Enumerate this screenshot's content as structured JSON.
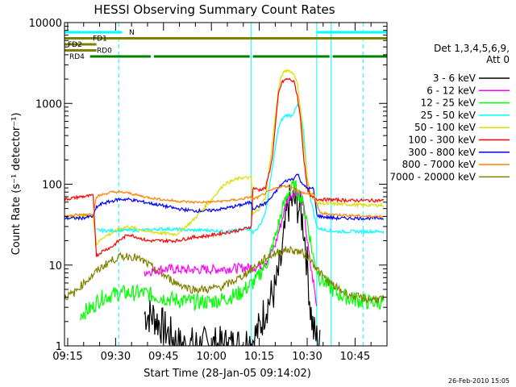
{
  "chart_data": {
    "type": "line",
    "title": "HESSI Observing Summary Count Rates",
    "xlabel": "Start Time (28-Jan-05 09:14:02)",
    "ylabel": "Count Rate (s⁻¹ detector⁻¹)",
    "yscale": "log",
    "ylim": [
      1,
      10000
    ],
    "xlim_minutes": [
      0,
      101
    ],
    "x_ticks": [
      {
        "label": "09:15",
        "minute": 1
      },
      {
        "label": "09:30",
        "minute": 16
      },
      {
        "label": "09:45",
        "minute": 31
      },
      {
        "label": "10:00",
        "minute": 46
      },
      {
        "label": "10:15",
        "minute": 61
      },
      {
        "label": "10:30",
        "minute": 76
      },
      {
        "label": "10:45",
        "minute": 91
      }
    ],
    "y_ticks": [
      {
        "label": "1",
        "value": 1
      },
      {
        "label": "10",
        "value": 10
      },
      {
        "label": "100",
        "value": 100
      },
      {
        "label": "1000",
        "value": 1000
      },
      {
        "label": "10000",
        "value": 10000
      }
    ],
    "legend_title_1": "Det 1,3,4,5,6,9,",
    "legend_title_2": "Att 0",
    "legend_placement": "right",
    "series": [
      {
        "name": "3 - 6 keV",
        "color": "#000000",
        "x": [
          25,
          28,
          32,
          36,
          40,
          45,
          50,
          55,
          59,
          61,
          63,
          66,
          68,
          69.5,
          70,
          71,
          72,
          73,
          74,
          75,
          76,
          77,
          78,
          80
        ],
        "y": [
          2.5,
          2.3,
          1.5,
          1,
          1,
          1,
          1,
          1,
          1.2,
          1.6,
          3,
          5,
          12,
          40,
          55,
          60,
          62,
          55,
          45,
          28,
          10,
          3,
          1.5,
          1
        ]
      },
      {
        "name": "6 - 12 keV",
        "color": "#ff00ff",
        "x": [
          25,
          32,
          38,
          45,
          55,
          60,
          62,
          64,
          66,
          68,
          70,
          72,
          74,
          75,
          76,
          77,
          78,
          79
        ],
        "y": [
          8.2,
          9,
          8.7,
          8.8,
          9.2,
          9.5,
          10,
          12,
          18,
          35,
          70,
          82,
          75,
          50,
          20,
          10,
          6,
          3
        ]
      },
      {
        "name": "12 - 25 keV",
        "color": "#00ff00",
        "x": [
          5,
          9,
          10,
          12,
          17,
          25,
          30,
          35,
          40,
          45,
          50,
          55,
          60,
          64,
          66,
          68,
          70,
          72,
          74,
          76,
          78,
          80,
          85,
          90,
          95,
          100
        ],
        "y": [
          2.5,
          3,
          3.5,
          4,
          4.5,
          4.5,
          4,
          3.7,
          3.5,
          3.5,
          3.8,
          4.5,
          6.5,
          12,
          22,
          45,
          80,
          95,
          70,
          35,
          12,
          7,
          4.5,
          3.8,
          3.5,
          3.5
        ]
      },
      {
        "name": "25 - 50 keV",
        "color": "#00ffff",
        "x": [
          10,
          15,
          17,
          25,
          30,
          32,
          40,
          45,
          50,
          55,
          58.5,
          59,
          61,
          63,
          65,
          67,
          68,
          69,
          70,
          71,
          72,
          73,
          74,
          75,
          76,
          77,
          78,
          79,
          80,
          85,
          90,
          95,
          100
        ],
        "y": [
          27,
          26.5,
          27,
          27,
          28,
          28,
          27,
          27,
          26,
          27,
          28.5,
          25,
          30,
          45,
          150,
          500,
          620,
          700,
          720,
          700,
          800,
          950,
          800,
          400,
          120,
          70,
          45,
          30,
          28,
          26,
          26,
          26,
          26
        ]
      },
      {
        "name": "50 - 100 keV",
        "color": "#dddd00",
        "x": [
          0,
          5,
          9,
          10,
          12,
          15,
          17,
          20,
          23,
          26,
          30,
          35,
          40,
          45,
          50,
          55,
          58.5,
          59,
          61,
          63,
          65,
          67,
          68,
          69,
          70,
          71,
          72,
          73,
          74,
          75,
          76,
          77,
          78,
          79,
          80,
          85,
          90,
          95,
          100
        ],
        "y": [
          40,
          40,
          41,
          18,
          22,
          25,
          28,
          30,
          28,
          26,
          25,
          24,
          35,
          58,
          100,
          120,
          120,
          42,
          50,
          70,
          300,
          1500,
          2200,
          2500,
          2600,
          2450,
          2300,
          1700,
          800,
          300,
          120,
          80,
          65,
          60,
          58,
          57,
          56,
          55,
          55
        ]
      },
      {
        "name": "100 - 300 keV",
        "color": "#ff0000",
        "x": [
          0,
          5,
          9,
          10,
          12,
          15,
          17,
          20,
          23,
          26,
          30,
          35,
          40,
          45,
          50,
          55,
          58.5,
          59,
          61,
          63,
          65,
          67,
          68,
          69,
          70,
          71,
          72,
          73,
          74,
          75,
          76,
          77,
          78,
          79,
          80,
          85,
          90,
          95,
          100
        ],
        "y": [
          65,
          70,
          72,
          13,
          15,
          17,
          20,
          24,
          22,
          20,
          20,
          20,
          22,
          23,
          25,
          27,
          30,
          90,
          85,
          90,
          200,
          1300,
          1800,
          1950,
          2000,
          1950,
          1800,
          1200,
          600,
          200,
          90,
          70,
          68,
          66,
          65,
          64,
          63,
          63,
          63
        ]
      },
      {
        "name": "300 - 800 keV",
        "color": "#0000ff",
        "x": [
          0,
          5,
          9,
          10,
          12,
          15,
          17,
          20,
          25,
          30,
          35,
          40,
          45,
          50,
          55,
          58.5,
          59,
          61,
          63,
          65,
          67,
          69,
          70,
          71,
          72,
          73,
          74,
          75,
          76,
          77,
          78,
          79,
          80,
          85,
          90,
          95,
          100
        ],
        "y": [
          38,
          38,
          40,
          52,
          58,
          62,
          65,
          65,
          60,
          55,
          50,
          47,
          47,
          50,
          55,
          60,
          50,
          54,
          58,
          70,
          90,
          108,
          112,
          115,
          120,
          135,
          110,
          95,
          90,
          88,
          88,
          42,
          40,
          38,
          38,
          38,
          38
        ]
      },
      {
        "name": "800 - 7000 keV",
        "color": "#ff8000",
        "x": [
          0,
          5,
          9,
          10,
          12,
          15,
          17,
          20,
          25,
          30,
          35,
          40,
          45,
          50,
          55,
          58.5,
          59,
          61,
          63,
          65,
          67,
          69,
          70,
          71,
          72,
          73,
          74,
          75,
          76,
          78,
          80,
          85,
          90,
          95,
          100
        ],
        "y": [
          40,
          42,
          43,
          70,
          75,
          80,
          80,
          78,
          70,
          65,
          62,
          60,
          60,
          62,
          65,
          70,
          65,
          70,
          78,
          85,
          92,
          95,
          94,
          92,
          88,
          85,
          80,
          78,
          76,
          75,
          44,
          42,
          41,
          40,
          40
        ]
      },
      {
        "name": "7000 - 20000 keV",
        "color": "#808000",
        "x": [
          0,
          3,
          5,
          8,
          11,
          14,
          17,
          20,
          22,
          25,
          28,
          31,
          35,
          40,
          45,
          50,
          55,
          58,
          61,
          64,
          67,
          70,
          72,
          74,
          76,
          78,
          80,
          83,
          86,
          89,
          92,
          95,
          100
        ],
        "y": [
          4,
          4.5,
          5.5,
          7,
          9,
          11,
          12.5,
          13,
          12.5,
          11,
          9,
          7.5,
          6,
          5,
          5,
          5.5,
          7,
          8.5,
          10.5,
          13,
          14.5,
          15.5,
          15,
          14.5,
          13,
          10.5,
          8,
          6,
          5,
          4.3,
          4,
          3.8,
          3.8
        ]
      }
    ],
    "state_bars": [
      {
        "label": "N",
        "color": "#00ffff",
        "segments": [
          [
            0,
            18
          ],
          [
            79,
            101
          ]
        ],
        "level": 1
      },
      {
        "label": "FD1",
        "color": "#808000",
        "segments": [
          [
            0,
            101
          ]
        ],
        "level": 2
      },
      {
        "label": "FD2",
        "color": "#808000",
        "segments": [
          [
            0,
            10
          ]
        ],
        "level": 3
      },
      {
        "label": "RD0",
        "color": "#808000",
        "segments": [
          [
            0,
            10
          ]
        ],
        "level": 4
      },
      {
        "label": "RD4",
        "color": "#008000",
        "segments": [
          [
            8,
            27
          ],
          [
            28,
            58
          ],
          [
            59,
            83
          ],
          [
            84,
            101
          ]
        ],
        "level": 5
      }
    ],
    "vertical_markers": {
      "solid": [
        0,
        58.5,
        79,
        83.5
      ],
      "dashed": [
        17,
        93.5
      ]
    },
    "footer_date": "26-Feb-2010 15:05"
  }
}
